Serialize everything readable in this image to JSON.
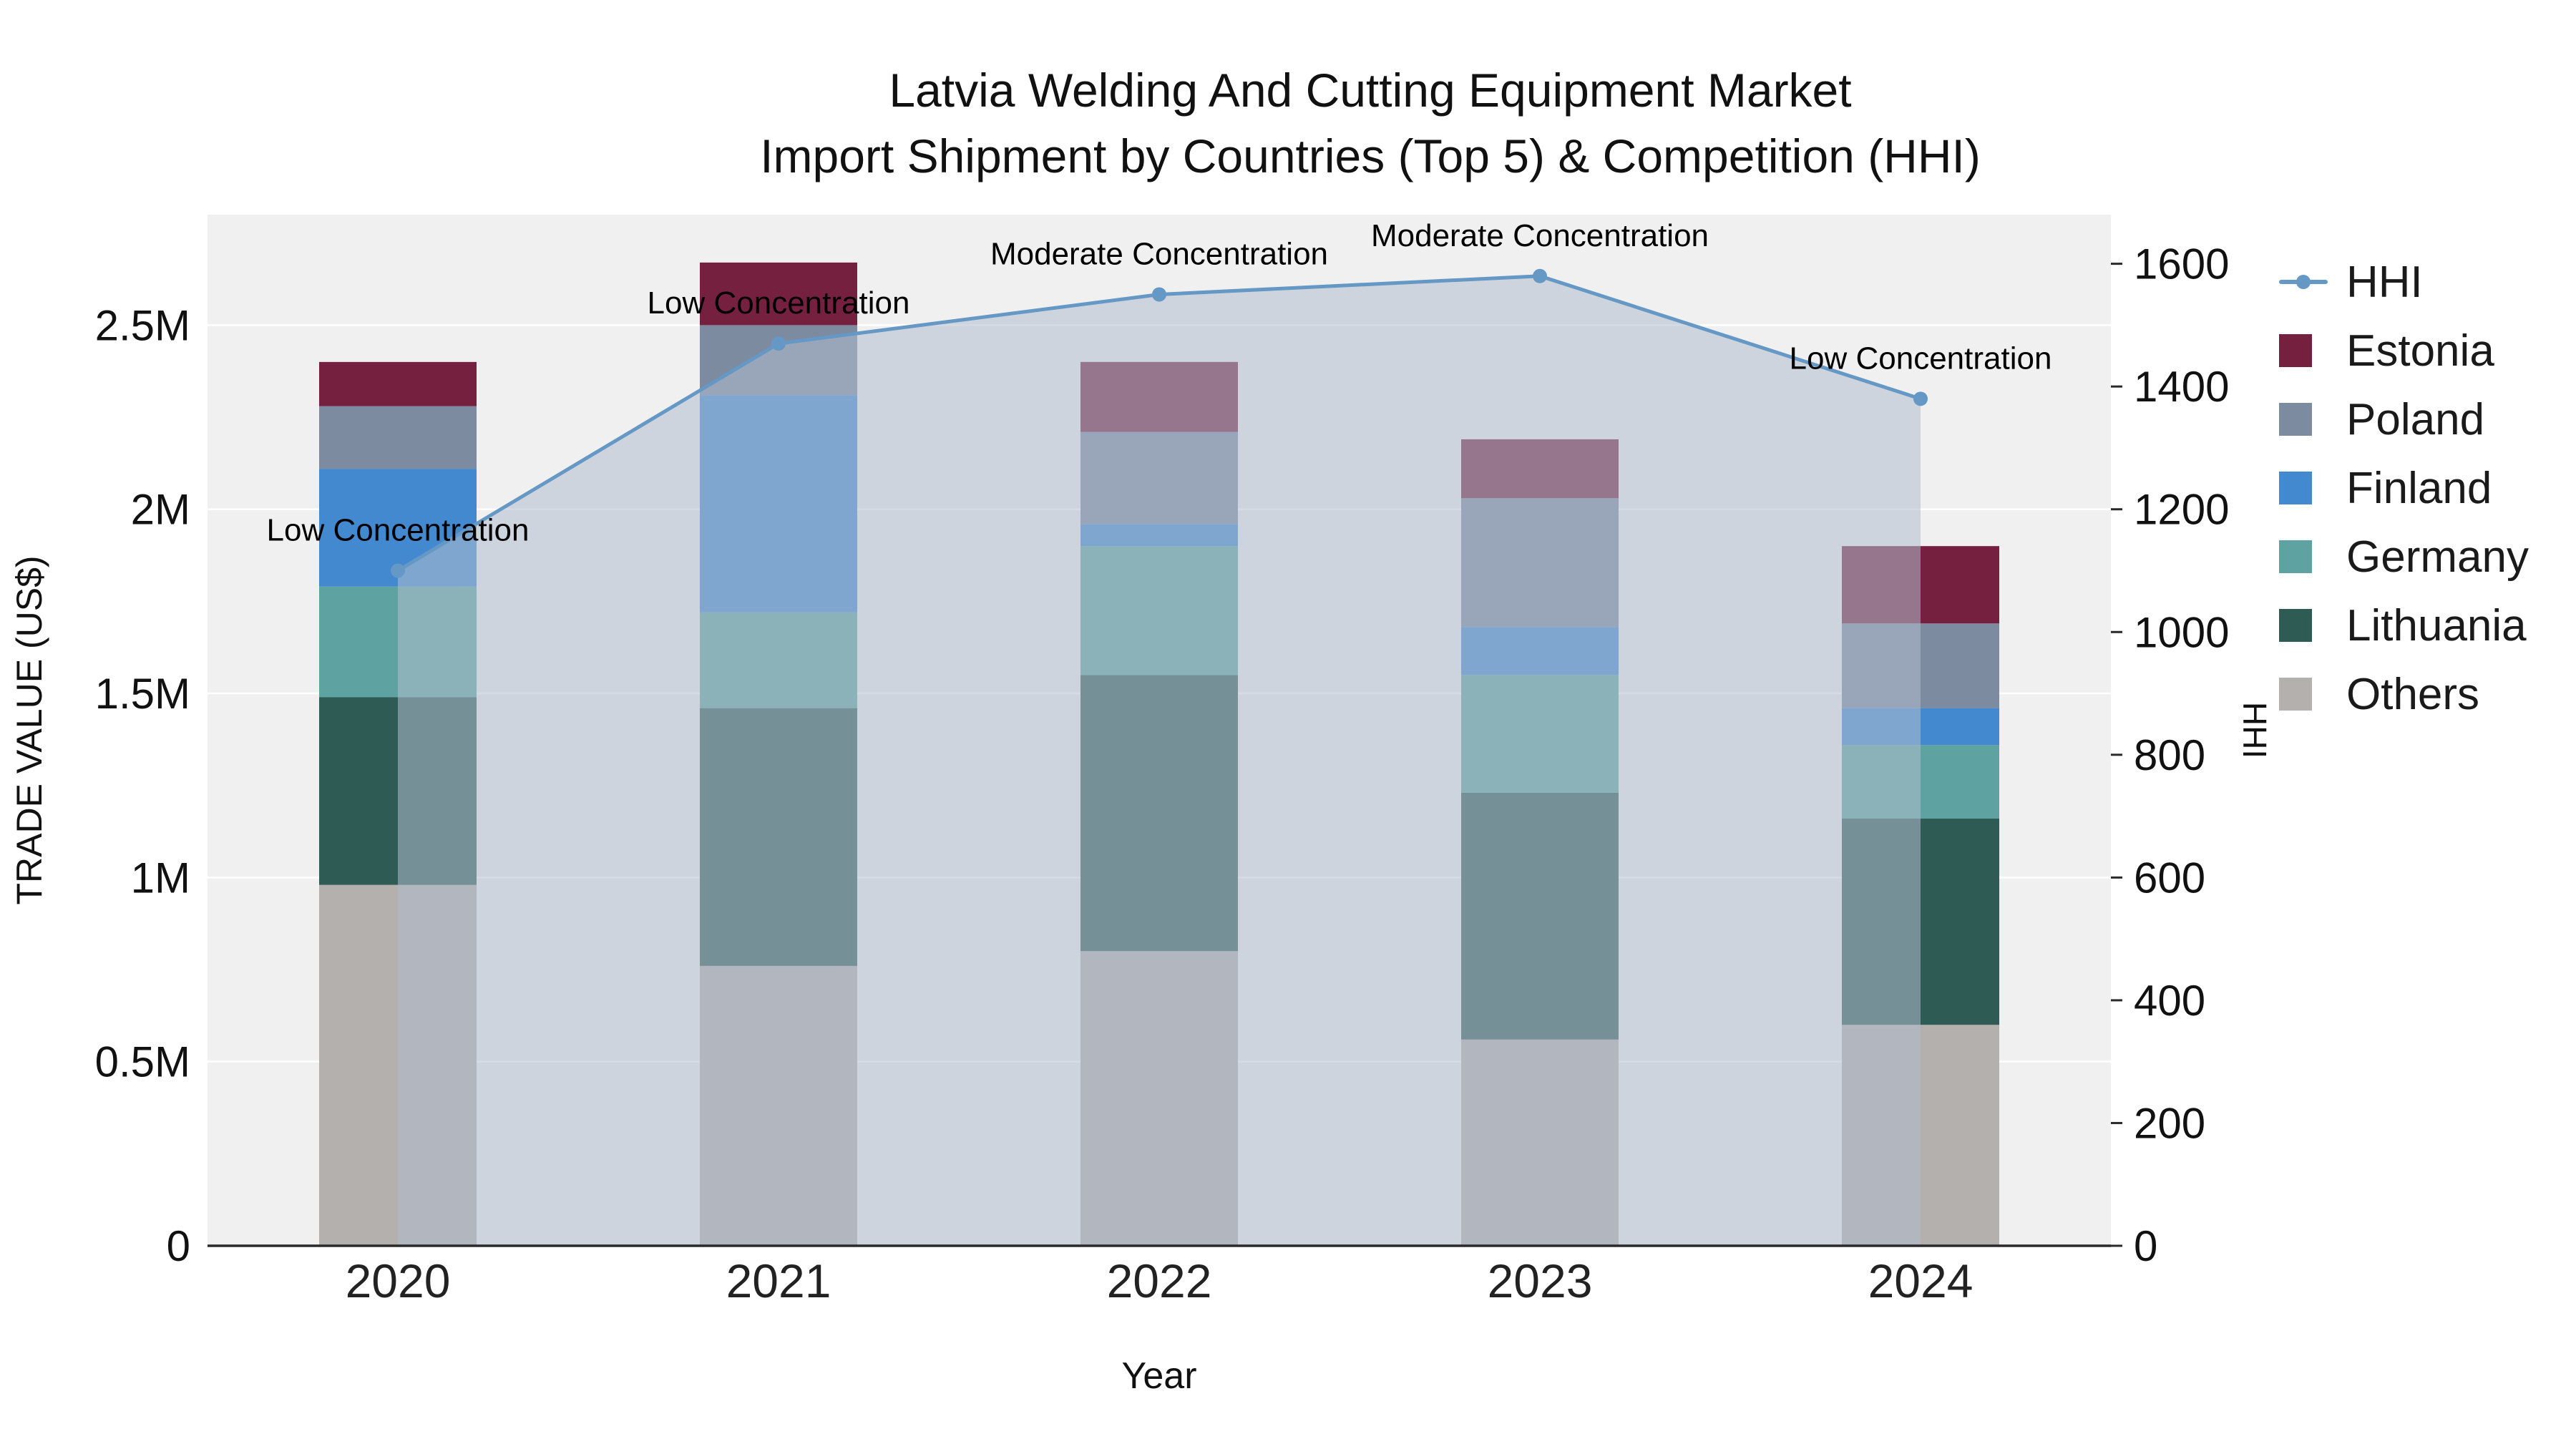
{
  "chart_data": {
    "type": "bar",
    "subtype": "stacked-bars-with-line-overlay",
    "title_lines": [
      "Latvia Welding And Cutting Equipment Market",
      "Import Shipment by Countries (Top 5) & Competition (HHI)"
    ],
    "xlabel": "Year",
    "ylabel_left": "TRADE VALUE (US$)",
    "ylabel_right": "HHI",
    "categories": [
      "2020",
      "2021",
      "2022",
      "2023",
      "2024"
    ],
    "bar_value_unit": "Million US$",
    "series": [
      {
        "name": "Others",
        "color": "#b3b0ae",
        "values": [
          0.98,
          0.76,
          0.8,
          0.56,
          0.6
        ]
      },
      {
        "name": "Lithuania",
        "color": "#2e5c55",
        "values": [
          0.51,
          0.7,
          0.75,
          0.67,
          0.56
        ]
      },
      {
        "name": "Germany",
        "color": "#5ea3a1",
        "values": [
          0.3,
          0.26,
          0.35,
          0.32,
          0.2
        ]
      },
      {
        "name": "Finland",
        "color": "#4289cf",
        "values": [
          0.32,
          0.59,
          0.06,
          0.13,
          0.1
        ]
      },
      {
        "name": "Poland",
        "color": "#7c8ba0",
        "values": [
          0.17,
          0.19,
          0.25,
          0.35,
          0.23
        ]
      },
      {
        "name": "Estonia",
        "color": "#76203f",
        "values": [
          0.12,
          0.17,
          0.19,
          0.16,
          0.21
        ]
      }
    ],
    "bar_totals": [
      2.4,
      2.67,
      2.4,
      2.19,
      1.9
    ],
    "line_series": {
      "name": "HHI",
      "axis": "right",
      "color": "#6598c5",
      "area_fill": "rgba(176,190,205,0.55)",
      "values": [
        1100,
        1470,
        1550,
        1580,
        1380
      ]
    },
    "point_annotations": [
      "Low Concentration",
      "Low Concentration",
      "Moderate Concentration",
      "Moderate Concentration",
      "Low Concentration"
    ],
    "y_left": {
      "tick_values": [
        0,
        0.5,
        1,
        1.5,
        2,
        2.5
      ],
      "tick_labels": [
        "0",
        "0.5M",
        "1M",
        "1.5M",
        "2M",
        "2.5M"
      ],
      "axis_max": 2.8
    },
    "y_right": {
      "tick_values": [
        0,
        200,
        400,
        600,
        800,
        1000,
        1200,
        1400,
        1600
      ],
      "axis_max": 1680
    },
    "legend_position": "right",
    "grid": "horizontal-white-on-gray"
  },
  "colors": {
    "plot_bg": "#f0f0f0",
    "grid_line": "#ffffff",
    "axis_line": "#2a2a2a",
    "tick_text": "#111111",
    "annotation_text": "#000000",
    "title_text": "#111111"
  }
}
